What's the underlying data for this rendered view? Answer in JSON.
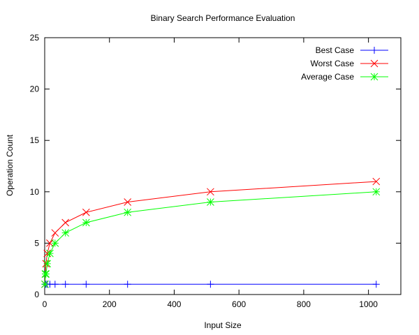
{
  "chart_data": {
    "type": "line",
    "title": "Binary Search Performance Evaluation",
    "xlabel": "Input Size",
    "ylabel": "Operation Count",
    "xlim": [
      0,
      1100
    ],
    "ylim": [
      0,
      25
    ],
    "x_ticks": [
      0,
      200,
      400,
      600,
      800,
      1000
    ],
    "y_ticks": [
      0,
      5,
      10,
      15,
      20,
      25
    ],
    "grid": false,
    "legend_position": "top-right",
    "series": [
      {
        "name": "Best Case",
        "color": "#0000ff",
        "marker": "plus",
        "x": [
          1,
          2,
          4,
          8,
          16,
          32,
          64,
          128,
          256,
          512,
          1024
        ],
        "y": [
          1,
          1,
          1,
          1,
          1,
          1,
          1,
          1,
          1,
          1,
          1
        ]
      },
      {
        "name": "Worst Case",
        "color": "#ff0000",
        "marker": "cross",
        "x": [
          1,
          2,
          4,
          8,
          16,
          32,
          64,
          128,
          256,
          512,
          1024
        ],
        "y": [
          1,
          2,
          3,
          4,
          5,
          6,
          7,
          8,
          9,
          10,
          11
        ]
      },
      {
        "name": "Average Case",
        "color": "#00ff00",
        "marker": "star",
        "x": [
          1,
          2,
          4,
          8,
          16,
          32,
          64,
          128,
          256,
          512,
          1024
        ],
        "y": [
          1,
          2,
          2,
          3,
          4,
          5,
          6,
          7,
          8,
          9,
          10
        ]
      }
    ]
  }
}
